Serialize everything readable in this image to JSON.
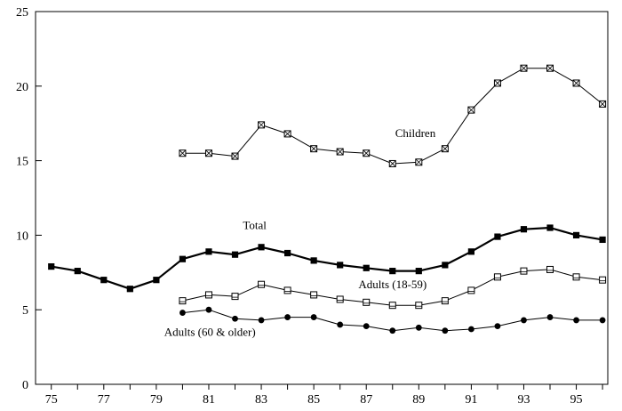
{
  "chart_data": {
    "type": "line",
    "title": "",
    "xlabel": "",
    "ylabel": "",
    "xlim": [
      1974.4,
      1996.2
    ],
    "ylim": [
      0,
      25
    ],
    "y_ticks": [
      0,
      5,
      10,
      15,
      20,
      25
    ],
    "x_ticks_minor": [
      1975,
      1976,
      1977,
      1978,
      1979,
      1980,
      1981,
      1982,
      1983,
      1984,
      1985,
      1986,
      1987,
      1988,
      1989,
      1990,
      1991,
      1992,
      1993,
      1994,
      1995,
      1996
    ],
    "x_tick_labels": [
      {
        "x": 1975,
        "label": "75"
      },
      {
        "x": 1977,
        "label": "77"
      },
      {
        "x": 1979,
        "label": "79"
      },
      {
        "x": 1981,
        "label": "81"
      },
      {
        "x": 1983,
        "label": "83"
      },
      {
        "x": 1985,
        "label": "85"
      },
      {
        "x": 1987,
        "label": "87"
      },
      {
        "x": 1989,
        "label": "89"
      },
      {
        "x": 1991,
        "label": "91"
      },
      {
        "x": 1993,
        "label": "93"
      },
      {
        "x": 1995,
        "label": "95"
      }
    ],
    "grid": false,
    "legend": "none",
    "series": [
      {
        "name": "Children",
        "marker": "square-crossed",
        "stroke": "thin",
        "label_anchor": {
          "x": 1988.1,
          "y": 16.6
        },
        "x": [
          1980,
          1981,
          1982,
          1983,
          1984,
          1985,
          1986,
          1987,
          1988,
          1989,
          1990,
          1991,
          1992,
          1993,
          1994,
          1995,
          1996
        ],
        "values": [
          15.5,
          15.5,
          15.3,
          17.4,
          16.8,
          15.8,
          15.6,
          15.5,
          14.8,
          14.9,
          15.8,
          18.4,
          20.2,
          21.2,
          21.2,
          20.2,
          18.8
        ]
      },
      {
        "name": "Total",
        "marker": "square-filled",
        "stroke": "thick",
        "label_anchor": {
          "x": 1982.3,
          "y": 10.4
        },
        "x": [
          1975,
          1976,
          1977,
          1978,
          1979,
          1980,
          1981,
          1982,
          1983,
          1984,
          1985,
          1986,
          1987,
          1988,
          1989,
          1990,
          1991,
          1992,
          1993,
          1994,
          1995,
          1996
        ],
        "values": [
          7.9,
          7.6,
          7.0,
          6.4,
          7.0,
          8.4,
          8.9,
          8.7,
          9.2,
          8.8,
          8.3,
          8.0,
          7.8,
          7.6,
          7.6,
          8.0,
          8.9,
          9.9,
          10.4,
          10.5,
          10.0,
          9.7
        ]
      },
      {
        "name": "Adults (18-59)",
        "marker": "square-open",
        "stroke": "thin",
        "label_anchor": {
          "x": 1986.7,
          "y": 6.45
        },
        "x": [
          1980,
          1981,
          1982,
          1983,
          1984,
          1985,
          1986,
          1987,
          1988,
          1989,
          1990,
          1991,
          1992,
          1993,
          1994,
          1995,
          1996
        ],
        "values": [
          5.6,
          6.0,
          5.9,
          6.7,
          6.3,
          6.0,
          5.7,
          5.5,
          5.3,
          5.3,
          5.6,
          6.3,
          7.2,
          7.6,
          7.7,
          7.2,
          7.0
        ]
      },
      {
        "name": "Adults  (60 & older)",
        "marker": "circle-filled",
        "stroke": "thin",
        "label_anchor": {
          "x": 1979.3,
          "y": 3.25
        },
        "x": [
          1980,
          1981,
          1982,
          1983,
          1984,
          1985,
          1986,
          1987,
          1988,
          1989,
          1990,
          1991,
          1992,
          1993,
          1994,
          1995,
          1996
        ],
        "values": [
          4.8,
          5.0,
          4.4,
          4.3,
          4.5,
          4.5,
          4.0,
          3.9,
          3.6,
          3.8,
          3.6,
          3.7,
          3.9,
          4.3,
          4.5,
          4.3,
          4.3
        ]
      }
    ]
  }
}
